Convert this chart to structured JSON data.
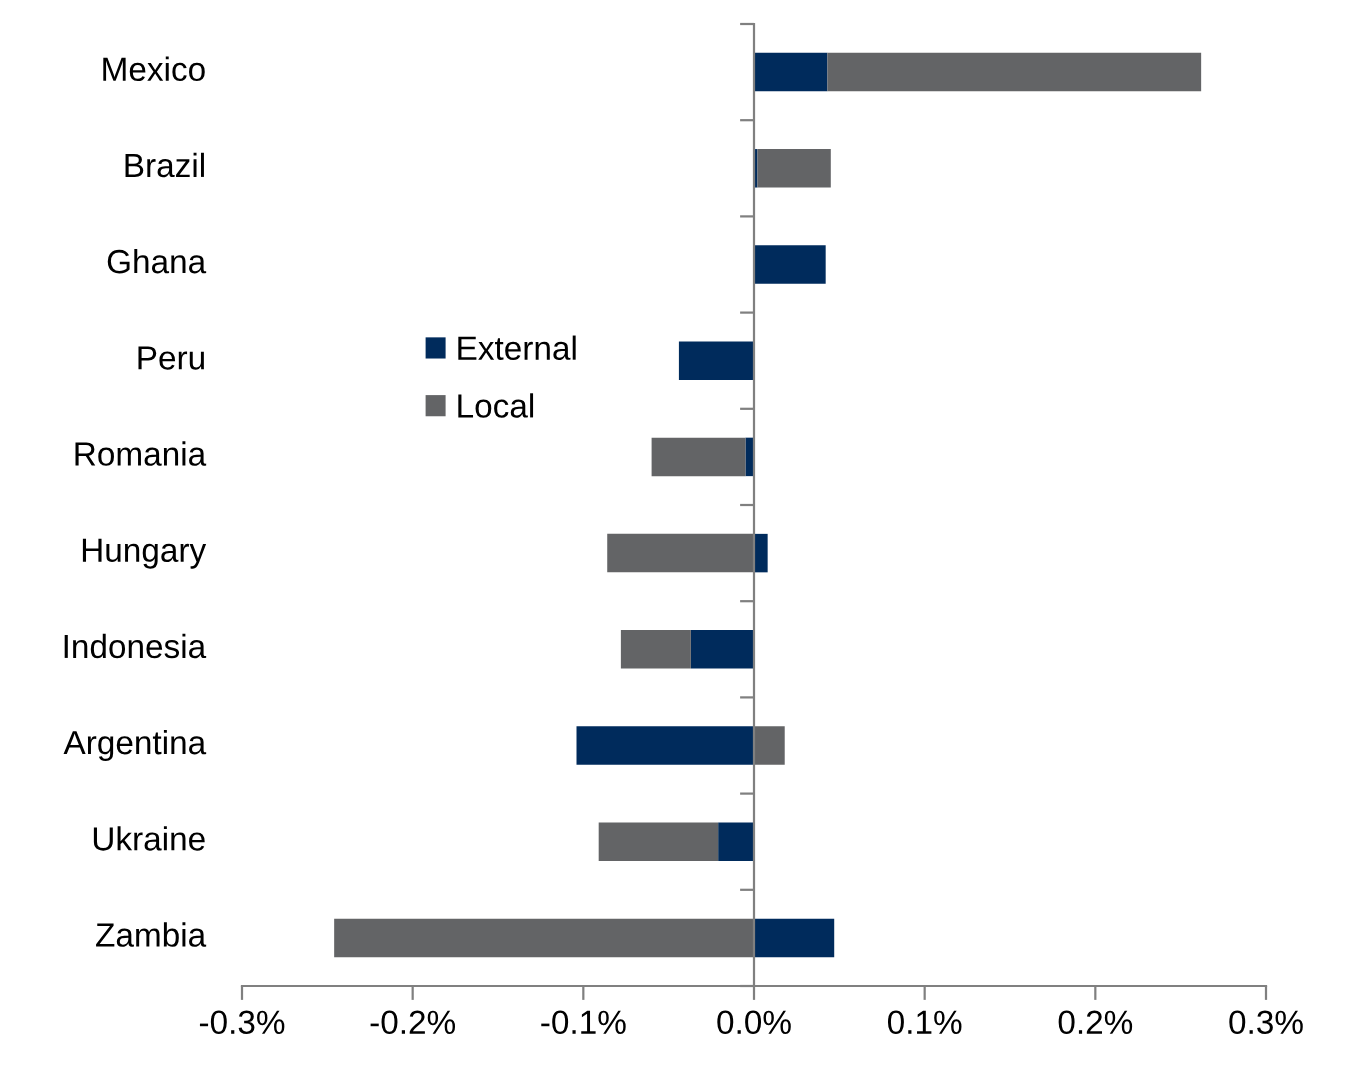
{
  "chart_data": {
    "type": "bar",
    "orientation": "horizontal",
    "stacked": true,
    "categories": [
      "Mexico",
      "Brazil",
      "Ghana",
      "Peru",
      "Romania",
      "Hungary",
      "Indonesia",
      "Argentina",
      "Ukraine",
      "Zambia"
    ],
    "series": [
      {
        "name": "External",
        "color": "#002b5c",
        "values": [
          0.043,
          0.002,
          0.042,
          -0.044,
          -0.005,
          0.008,
          -0.037,
          -0.104,
          -0.021,
          0.047
        ]
      },
      {
        "name": "Local",
        "color": "#636466",
        "values": [
          0.219,
          0.043,
          null,
          null,
          -0.055,
          -0.086,
          -0.041,
          0.018,
          -0.07,
          -0.246
        ]
      }
    ],
    "xlim": [
      -0.3,
      0.3
    ],
    "xticks": [
      {
        "value": -0.3,
        "label": "-0.3%"
      },
      {
        "value": -0.2,
        "label": "-0.2%"
      },
      {
        "value": -0.1,
        "label": "-0.1%"
      },
      {
        "value": 0,
        "label": "0.0%"
      },
      {
        "value": 0.1,
        "label": "0.1%"
      },
      {
        "value": 0.2,
        "label": "0.2%"
      },
      {
        "value": 0.3,
        "label": "0.3%"
      }
    ],
    "legend": "left"
  }
}
